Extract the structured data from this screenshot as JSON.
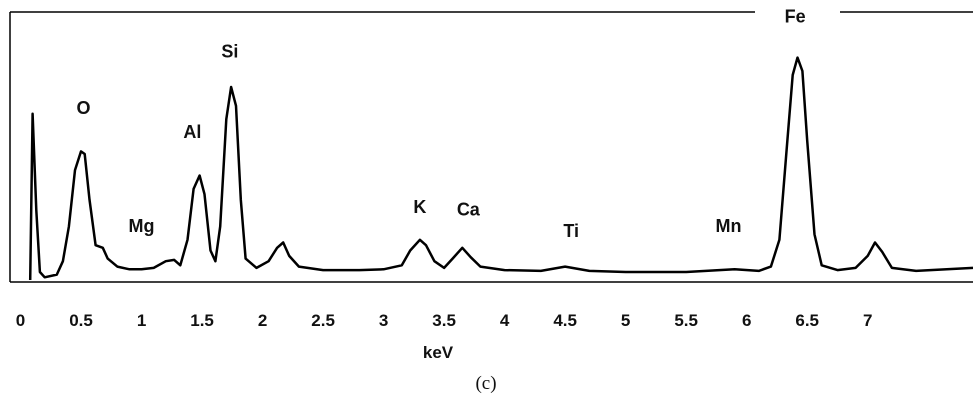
{
  "chart_data": {
    "type": "line",
    "x_label": "keV",
    "caption": "(c)",
    "xlim": [
      -0.087,
      7.87
    ],
    "ylim": [
      0,
      100
    ],
    "xticks": [
      0,
      0.5,
      1,
      1.5,
      2,
      2.5,
      3,
      3.5,
      4,
      4.5,
      5,
      5.5,
      6,
      6.5,
      7
    ],
    "series": [
      {
        "color": "#000000",
        "x": [
          0.08,
          0.1,
          0.13,
          0.16,
          0.2,
          0.3,
          0.35,
          0.4,
          0.45,
          0.5,
          0.53,
          0.57,
          0.62,
          0.68,
          0.72,
          0.8,
          0.9,
          1.0,
          1.1,
          1.2,
          1.27,
          1.32,
          1.38,
          1.43,
          1.48,
          1.52,
          1.57,
          1.61,
          1.65,
          1.7,
          1.74,
          1.78,
          1.82,
          1.86,
          1.95,
          2.05,
          2.12,
          2.17,
          2.22,
          2.3,
          2.5,
          2.8,
          3.0,
          3.15,
          3.22,
          3.3,
          3.35,
          3.42,
          3.5,
          3.57,
          3.65,
          3.72,
          3.8,
          4.0,
          4.3,
          4.5,
          4.7,
          5.0,
          5.5,
          5.9,
          6.1,
          6.2,
          6.27,
          6.33,
          6.38,
          6.42,
          6.46,
          6.5,
          6.56,
          6.62,
          6.75,
          6.9,
          7.0,
          7.06,
          7.12,
          7.2,
          7.4,
          7.87
        ],
        "values": [
          0,
          62,
          26,
          3,
          1,
          2,
          7,
          20,
          41,
          48,
          47,
          30,
          13,
          12,
          8,
          5,
          4,
          4,
          4.5,
          7,
          7.5,
          5.5,
          15,
          34,
          39,
          32,
          11,
          7,
          20,
          60,
          72,
          65,
          30,
          8,
          4.5,
          7,
          12,
          14,
          9,
          5,
          3.7,
          3.7,
          4,
          5.5,
          11,
          15,
          13,
          7,
          4.5,
          8,
          12,
          8.5,
          5,
          3.7,
          3.4,
          5,
          3.4,
          3,
          3,
          4,
          3.4,
          5,
          15,
          48.5,
          76.5,
          83,
          78,
          52,
          17,
          5.5,
          3.7,
          4.5,
          9,
          14,
          10.5,
          4.5,
          3.4,
          4.5
        ]
      }
    ],
    "annotations": [
      {
        "text": "O",
        "x": 0.52,
        "y": 62
      },
      {
        "text": "Mg",
        "x": 1.0,
        "y": 18
      },
      {
        "text": "Al",
        "x": 1.42,
        "y": 53
      },
      {
        "text": "Si",
        "x": 1.73,
        "y": 83
      },
      {
        "text": "K",
        "x": 3.3,
        "y": 25
      },
      {
        "text": "Ca",
        "x": 3.7,
        "y": 24
      },
      {
        "text": "Ti",
        "x": 4.55,
        "y": 16
      },
      {
        "text": "Mn",
        "x": 5.85,
        "y": 18
      },
      {
        "text": "Fe",
        "x": 6.4,
        "y": 96
      }
    ]
  }
}
